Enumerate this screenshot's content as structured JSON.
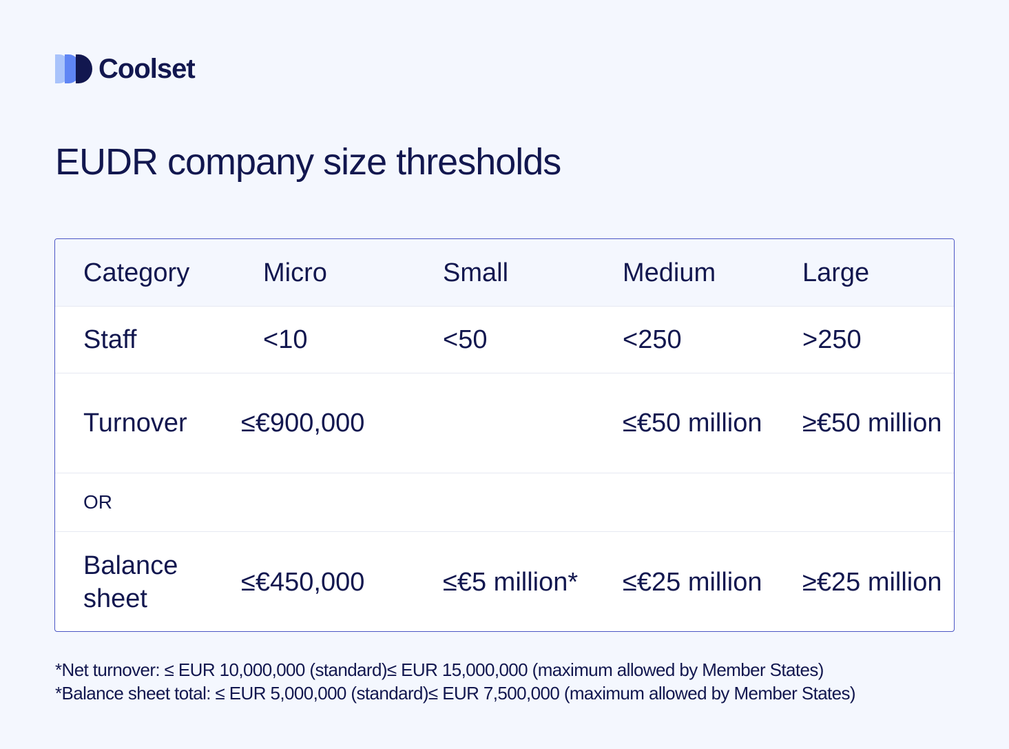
{
  "brand": {
    "name": "Coolset",
    "logo_icon": "coolset-logo-icon",
    "colors": {
      "logo_light": "#a9c3fb",
      "logo_mid": "#5f85f4",
      "logo_dark": "#12174f"
    }
  },
  "title": "EUDR company size thresholds",
  "colors": {
    "background": "#f4f7fe",
    "text": "#12174f",
    "table_border": "#4a55c4",
    "header_background": "#f4f7fe",
    "row_background": "#ffffff"
  },
  "table": {
    "headers": [
      "Category",
      "Micro",
      "Small",
      "Medium",
      "Large"
    ],
    "staff": {
      "label": "Staff",
      "micro": "<10",
      "small": "<50",
      "medium": "<250",
      "large": ">250"
    },
    "turnover": {
      "label": "Turnover",
      "micro_small": "≤€900,000",
      "medium": "≤€50 million",
      "large": "≥€50 million"
    },
    "or_label": "OR",
    "balance_sheet": {
      "label": "Balance sheet",
      "micro": "≤€450,000",
      "small": "≤€5 million*",
      "medium": "≤€25 million",
      "large": "≥€25 million"
    }
  },
  "footnotes": [
    "*Net turnover: ≤ EUR 10,000,000 (standard)≤ EUR 15,000,000 (maximum allowed by Member States)",
    "*Balance sheet total: ≤ EUR 5,000,000 (standard)≤ EUR 7,500,000 (maximum allowed by Member States)"
  ]
}
